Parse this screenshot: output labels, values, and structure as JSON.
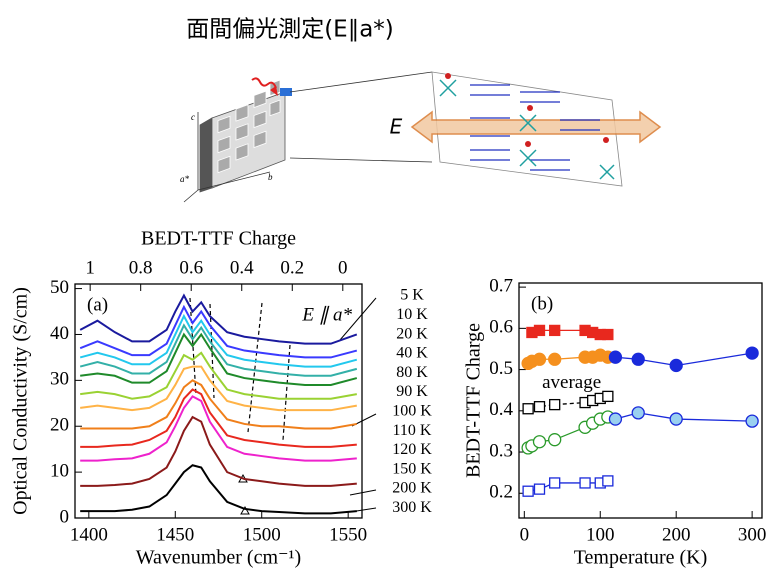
{
  "title": "面間偏光測定(E∥a*)",
  "diagram": {
    "field_label": "E",
    "axis_labels": [
      "c",
      "b",
      "a*"
    ]
  },
  "chart_data": [
    {
      "type": "line",
      "panel_label": "(a)",
      "annotation": "E ∥ a*",
      "x_label": "Wavenumber (cm⁻¹)",
      "y_label": "Optical Conductivity (S/cm)",
      "x2_label": "BEDT-TTF Charge",
      "xlim": [
        1392,
        1558
      ],
      "xticks": [
        1400,
        1450,
        1500,
        1550
      ],
      "x2lim": [
        1.06,
        -0.076
      ],
      "x2ticks": [
        1,
        0.8,
        0.6,
        0.4,
        0.2,
        0
      ],
      "ylim": [
        0,
        51
      ],
      "yticks": [
        0,
        10,
        20,
        30,
        40,
        50
      ],
      "x": [
        1395,
        1405,
        1415,
        1425,
        1435,
        1445,
        1450,
        1455,
        1460,
        1465,
        1470,
        1480,
        1490,
        1500,
        1510,
        1525,
        1540,
        1555
      ],
      "series": [
        {
          "name": "5 K",
          "color": "#1a1a9e",
          "values": [
            41,
            43,
            40.5,
            38.5,
            38.5,
            41,
            45,
            48.5,
            45,
            47,
            44,
            40.5,
            39.5,
            39,
            38.5,
            38,
            38,
            40
          ]
        },
        {
          "name": "10 K",
          "color": "#3a3aff",
          "values": [
            37,
            38.5,
            37,
            35.5,
            35.5,
            38,
            42,
            46,
            42.5,
            45,
            42,
            37.5,
            36.5,
            36,
            35.5,
            35,
            35,
            36.5
          ]
        },
        {
          "name": "20 K",
          "color": "#22c8ee",
          "values": [
            35,
            36,
            35,
            33.5,
            33.5,
            36,
            40,
            44,
            40.5,
            43,
            40,
            35.5,
            34.5,
            34,
            33.5,
            33,
            33,
            34.5
          ]
        },
        {
          "name": "40 K",
          "color": "#33b0a8",
          "values": [
            33,
            34,
            33,
            31.5,
            31.5,
            34,
            38,
            42,
            39,
            41.5,
            38.5,
            33.5,
            32.5,
            32,
            31.5,
            31,
            31,
            32.5
          ]
        },
        {
          "name": "80 K",
          "color": "#1f8a2a",
          "values": [
            31,
            31.5,
            31,
            29.5,
            29.5,
            32,
            36,
            40,
            37.5,
            40,
            37,
            31.5,
            30.5,
            30,
            29.5,
            29,
            29,
            30.5
          ]
        },
        {
          "name": "90 K",
          "color": "#9ad233",
          "values": [
            27,
            27.5,
            27,
            26,
            26.5,
            28.5,
            32,
            35.5,
            34.5,
            36,
            33,
            28,
            27,
            26.5,
            26,
            26,
            26,
            27
          ]
        },
        {
          "name": "100 K",
          "color": "#ffb347",
          "values": [
            24,
            24.5,
            24,
            23.5,
            24,
            26,
            29,
            32.5,
            33,
            33,
            30,
            25.5,
            24.5,
            24,
            23.5,
            23.5,
            23.5,
            24.5
          ]
        },
        {
          "name": "110 K",
          "color": "#f07f1a",
          "values": [
            19.5,
            19.5,
            19.5,
            19.5,
            20,
            22,
            25,
            28.5,
            30,
            29,
            26,
            21.5,
            20.5,
            20,
            20,
            19.5,
            19.5,
            20.5
          ]
        },
        {
          "name": "120 K",
          "color": "#e8281e",
          "values": [
            15.5,
            15.5,
            15.8,
            16,
            17,
            19,
            22,
            26,
            28,
            27,
            23,
            18,
            17,
            16.5,
            16,
            15.5,
            15.5,
            16
          ]
        },
        {
          "name": "150 K",
          "color": "#ee22cc",
          "values": [
            12.5,
            12.5,
            12.8,
            13,
            14,
            16.5,
            20,
            24,
            26.5,
            25.5,
            21,
            15.5,
            14,
            13.5,
            13,
            12.5,
            12.5,
            13
          ]
        },
        {
          "name": "200 K",
          "color": "#8b1a1a",
          "values": [
            7,
            7,
            7.2,
            7.5,
            8.5,
            11,
            14.5,
            19,
            22,
            21,
            16,
            10,
            8.5,
            8,
            7.5,
            7,
            7,
            7.5
          ]
        },
        {
          "name": "300 K",
          "color": "#000000",
          "values": [
            1.5,
            1.5,
            1.5,
            1.8,
            2.5,
            5,
            7.5,
            10,
            11.5,
            11,
            8,
            3.5,
            2,
            1.5,
            1.3,
            1,
            1,
            1.5
          ]
        }
      ]
    },
    {
      "type": "scatter",
      "panel_label": "(b)",
      "x_label": "Temperature (K)",
      "y_label": "BEDT-TTF Charge",
      "xlim": [
        -7,
        313
      ],
      "xticks": [
        0,
        100,
        200,
        300
      ],
      "ylim": [
        0.14,
        0.71
      ],
      "yticks": [
        0.2,
        0.3,
        0.4,
        0.5,
        0.6,
        0.7
      ],
      "series": [
        {
          "color": "#e8281e",
          "marker": "square",
          "filled": true,
          "x": [
            10,
            20,
            40,
            80,
            90,
            100,
            110
          ],
          "values": [
            0.59,
            0.595,
            0.595,
            0.595,
            0.59,
            0.585,
            0.585
          ]
        },
        {
          "color": "#f5901e",
          "marker": "circle",
          "filled": true,
          "x": [
            5,
            10,
            20,
            40,
            80,
            90,
            100,
            110
          ],
          "values": [
            0.515,
            0.52,
            0.525,
            0.525,
            0.53,
            0.53,
            0.535,
            0.53
          ]
        },
        {
          "color": "#1a2adb",
          "marker": "circle",
          "filled": true,
          "x": [
            120,
            150,
            200,
            300
          ],
          "values": [
            0.53,
            0.525,
            0.51,
            0.54
          ]
        },
        {
          "name": "average",
          "color": "#000000",
          "marker": "square",
          "filled": false,
          "dash": true,
          "x": [
            5,
            20,
            40,
            80,
            90,
            100,
            110
          ],
          "values": [
            0.405,
            0.41,
            0.415,
            0.42,
            0.425,
            0.43,
            0.435
          ]
        },
        {
          "color": "#2a9a2a",
          "marker": "circle",
          "filled": false,
          "x": [
            5,
            10,
            20,
            40,
            80,
            90,
            100,
            110
          ],
          "values": [
            0.31,
            0.315,
            0.325,
            0.33,
            0.36,
            0.37,
            0.38,
            0.385
          ]
        },
        {
          "color": "#1a2adb",
          "fill": "#9ad0f0",
          "marker": "circle",
          "filled": true,
          "x": [
            120,
            150,
            200,
            300
          ],
          "values": [
            0.38,
            0.395,
            0.38,
            0.375
          ]
        },
        {
          "color": "#1a2adb",
          "marker": "square",
          "filled": false,
          "x": [
            5,
            20,
            40,
            80,
            100,
            110
          ],
          "values": [
            0.205,
            0.21,
            0.225,
            0.225,
            0.225,
            0.23
          ]
        }
      ]
    }
  ]
}
